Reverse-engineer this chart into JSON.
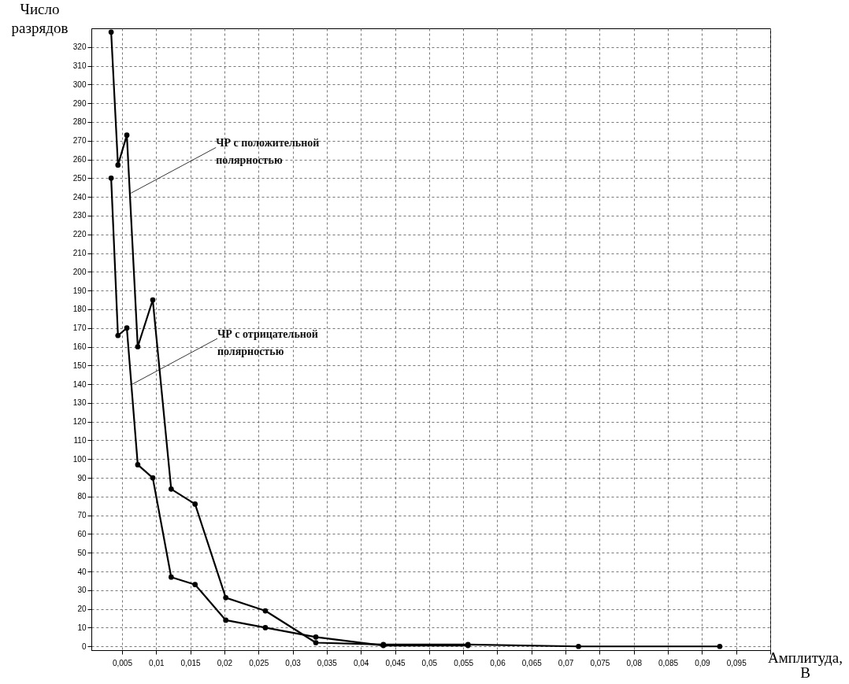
{
  "chart_data": {
    "type": "line",
    "xlabel": "Амплитуда, В",
    "ylabel": "Число разрядов",
    "xlim": [
      0.0005,
      0.1
    ],
    "ylim": [
      -2,
      330
    ],
    "xticks": [
      {
        "value": 0.005,
        "label": "0,005"
      },
      {
        "value": 0.01,
        "label": "0,01"
      },
      {
        "value": 0.015,
        "label": "0,015"
      },
      {
        "value": 0.02,
        "label": "0,02"
      },
      {
        "value": 0.025,
        "label": "0,025"
      },
      {
        "value": 0.03,
        "label": "0,03"
      },
      {
        "value": 0.035,
        "label": "0,035"
      },
      {
        "value": 0.04,
        "label": "0,04"
      },
      {
        "value": 0.045,
        "label": "0,045"
      },
      {
        "value": 0.05,
        "label": "0,05"
      },
      {
        "value": 0.055,
        "label": "0,055"
      },
      {
        "value": 0.06,
        "label": "0,06"
      },
      {
        "value": 0.065,
        "label": "0,065"
      },
      {
        "value": 0.07,
        "label": "0,07"
      },
      {
        "value": 0.075,
        "label": "0,075"
      },
      {
        "value": 0.08,
        "label": "0,08"
      },
      {
        "value": 0.085,
        "label": "0,085"
      },
      {
        "value": 0.09,
        "label": "0,09"
      },
      {
        "value": 0.095,
        "label": "0,095"
      },
      {
        "value": 0.1,
        "label": null
      }
    ],
    "yticks": [
      0,
      10,
      20,
      30,
      40,
      50,
      60,
      70,
      80,
      90,
      100,
      110,
      120,
      130,
      140,
      150,
      160,
      170,
      180,
      190,
      200,
      210,
      220,
      230,
      240,
      250,
      260,
      270,
      280,
      290,
      300,
      310,
      320
    ],
    "grid": true,
    "marker": "circle",
    "line_style": "solid",
    "series": [
      {
        "color": "#000000",
        "x": [
          0.0034,
          0.0044,
          0.0057,
          0.0073,
          0.0095,
          0.0122,
          0.0157,
          0.0202,
          0.026,
          0.0334,
          0.0433,
          0.0557,
          0.0719,
          0.0926
        ],
        "values": [
          328,
          257,
          273,
          160,
          185,
          84,
          76,
          26,
          19,
          2,
          1,
          1,
          0,
          0
        ]
      },
      {
        "color": "#000000",
        "x": [
          0.0034,
          0.0044,
          0.0057,
          0.0073,
          0.0095,
          0.0122,
          0.0157,
          0.0202,
          0.026,
          0.0334,
          0.0433,
          0.0557
        ],
        "values": [
          250,
          166,
          170,
          97,
          90,
          37,
          33,
          14,
          10,
          5,
          0.5,
          0.5
        ]
      }
    ],
    "annotations": [
      {
        "text": "ЧР с положительной\nполярностью",
        "x": 0.0063,
        "y": 242
      },
      {
        "text": "ЧР с отрицательной\nполярностью",
        "x": 0.0065,
        "y": 140
      }
    ]
  }
}
